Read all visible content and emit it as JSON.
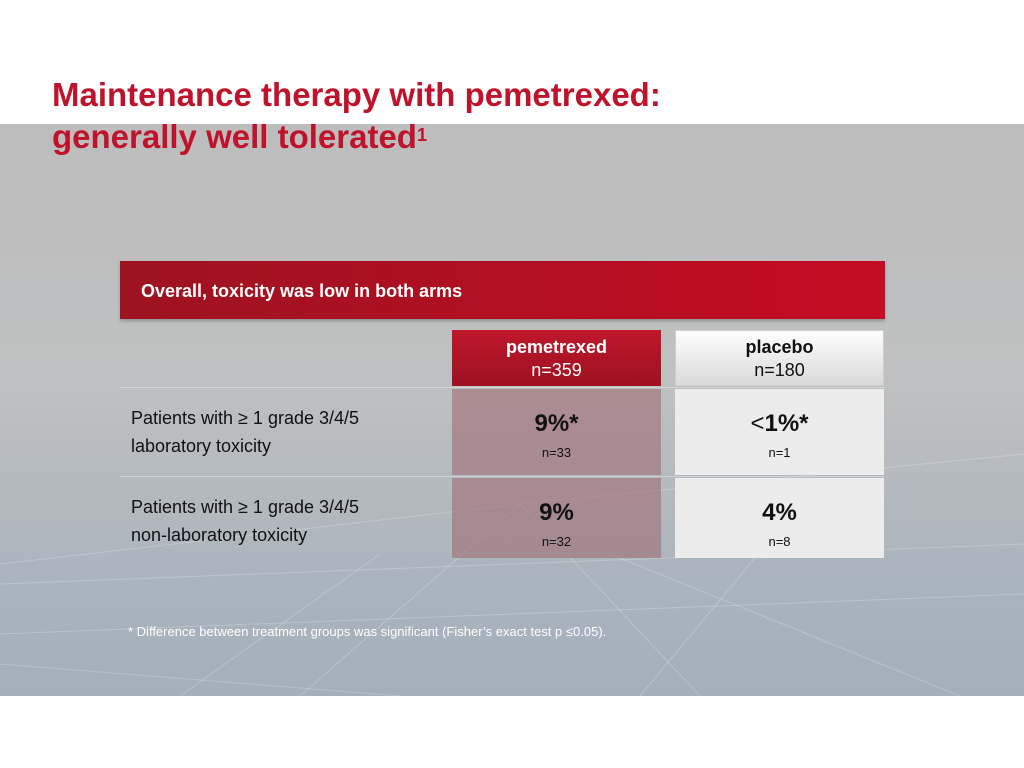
{
  "slide": {
    "title_line1": "Maintenance therapy with pemetrexed:",
    "title_line2": "generally well tolerated",
    "title_superscript": "1",
    "banner": "Overall, toxicity was low in both arms",
    "footnote": "* Difference between treatment groups was significant (Fisher’s exact test p ≤0.05)."
  },
  "table": {
    "columns": [
      {
        "name": "pemetrexed",
        "n": "n=359"
      },
      {
        "name": "placebo",
        "n": "n=180"
      }
    ],
    "rows": [
      {
        "label_line1": "Patients with ≥ 1 grade 3/4/5",
        "label_line2": "laboratory toxicity",
        "pemetrexed": {
          "value": "9%*",
          "n": "n=33"
        },
        "placebo": {
          "prefix": "<",
          "value": "1%*",
          "n": "n=1"
        }
      },
      {
        "label_line1": "Patients with ≥ 1 grade 3/4/5",
        "label_line2": "non-laboratory toxicity",
        "pemetrexed": {
          "value": "9%",
          "n": "n=32"
        },
        "placebo": {
          "value": "4%",
          "n": "n=8"
        }
      }
    ]
  },
  "colors": {
    "accent_red": "#c0132b",
    "banner_red": "#b30f22",
    "background_gray": "#bdbdbd"
  }
}
